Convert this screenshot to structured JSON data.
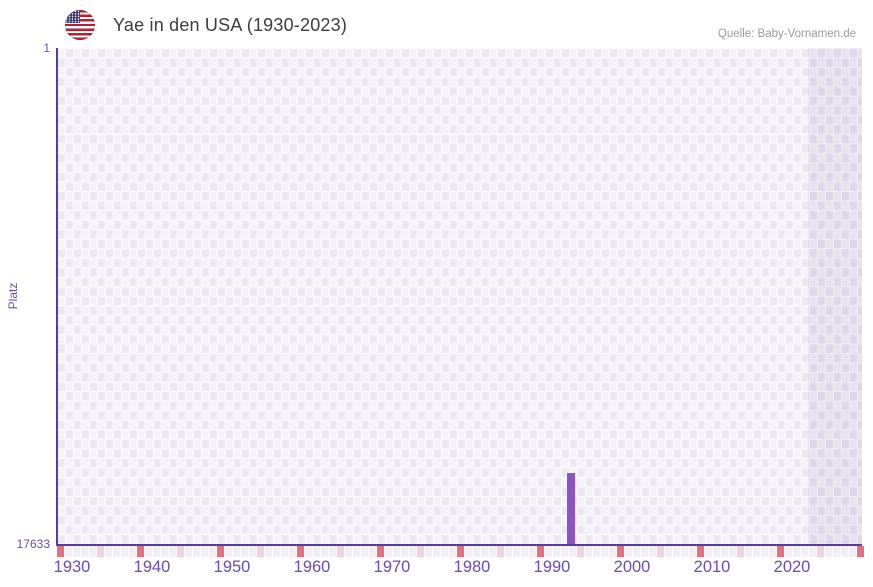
{
  "header": {
    "title": "Yae in den USA (1930-2023)",
    "source": "Quelle: Baby-Vornamen.de",
    "flag_icon": "usa-flag-icon"
  },
  "axes": {
    "y_label": "Platz",
    "y_top_tick": "1",
    "y_bottom_tick": "17633"
  },
  "chart_data": {
    "type": "bar",
    "title": "Yae in den USA (1930-2023)",
    "name": "Yae",
    "xlabel": "",
    "ylabel": "Platz",
    "x_range": [
      1930,
      2030
    ],
    "data_range": [
      1930,
      2023
    ],
    "y_range": [
      1,
      17633
    ],
    "y_inverted": true,
    "grid": "checkerboard",
    "x_tick_labels": [
      "1930",
      "1940",
      "1950",
      "1960",
      "1970",
      "1980",
      "1990",
      "2000",
      "2010",
      "2020"
    ],
    "bars": [
      {
        "year": 1993,
        "rank": 15100
      }
    ],
    "shaded_region": {
      "start_year": 2024,
      "meaning": "after data range"
    },
    "marker_row": {
      "cells": 101,
      "red_every": 10,
      "pink_every": 5
    }
  },
  "colors": {
    "bar": "#8b55c4",
    "axis": "#5b3b99",
    "tick_text": "#6b4cad",
    "title_text": "#3d3d3d",
    "source_text": "#9a9a9a",
    "grid_light": "#f6f2fb",
    "grid_dark": "#ece7f5",
    "marker_red": "#e0717f",
    "marker_pink": "#eed3dd",
    "marker_base": "#f2eef9"
  }
}
